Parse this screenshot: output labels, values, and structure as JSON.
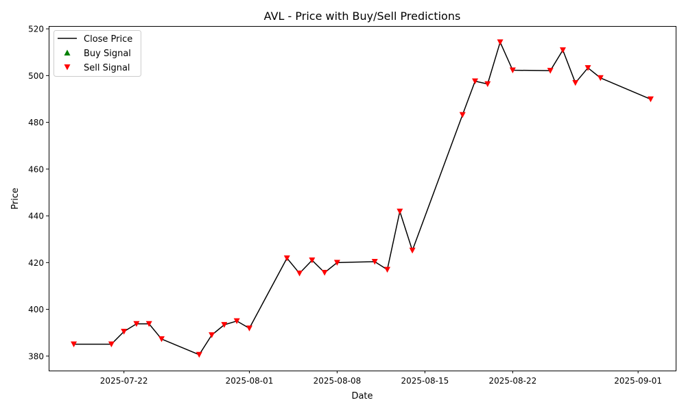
{
  "chart_data": {
    "type": "line",
    "title": "AVL - Price with Buy/Sell Predictions",
    "xlabel": "Date",
    "ylabel": "Price",
    "xlim": [
      "2025-07-16",
      "2025-09-04"
    ],
    "ylim": [
      373.8,
      521.2
    ],
    "xticks": [
      "2025-07-22",
      "2025-08-01",
      "2025-08-08",
      "2025-08-15",
      "2025-08-22",
      "2025-09-01"
    ],
    "yticks": [
      380,
      400,
      420,
      440,
      460,
      480,
      500,
      520
    ],
    "grid": false,
    "legend_position": "top-left",
    "series": [
      {
        "name": "Close Price",
        "kind": "line",
        "color": "#000000",
        "x": [
          "2025-07-18",
          "2025-07-21",
          "2025-07-22",
          "2025-07-23",
          "2025-07-24",
          "2025-07-25",
          "2025-07-28",
          "2025-07-29",
          "2025-07-30",
          "2025-07-31",
          "2025-08-01",
          "2025-08-04",
          "2025-08-05",
          "2025-08-06",
          "2025-08-07",
          "2025-08-08",
          "2025-08-11",
          "2025-08-12",
          "2025-08-13",
          "2025-08-14",
          "2025-08-18",
          "2025-08-19",
          "2025-08-20",
          "2025-08-21",
          "2025-08-22",
          "2025-08-25",
          "2025-08-26",
          "2025-08-27",
          "2025-08-28",
          "2025-08-29",
          "2025-09-02"
        ],
        "y": [
          385.1,
          385.1,
          390.5,
          393.8,
          393.8,
          387.3,
          380.6,
          389.0,
          393.4,
          395.0,
          391.9,
          421.9,
          415.4,
          421.0,
          415.7,
          420.0,
          420.4,
          417.0,
          441.9,
          425.2,
          483.2,
          497.6,
          496.4,
          514.3,
          502.3,
          502.1,
          510.9,
          496.9,
          503.3,
          499.0,
          489.9
        ]
      },
      {
        "name": "Buy Signal",
        "kind": "marker",
        "marker": "triangle-up",
        "color": "#008000",
        "x": [],
        "y": []
      },
      {
        "name": "Sell Signal",
        "kind": "marker",
        "marker": "triangle-down",
        "color": "#ff0000",
        "x": [
          "2025-07-18",
          "2025-07-21",
          "2025-07-22",
          "2025-07-23",
          "2025-07-24",
          "2025-07-25",
          "2025-07-28",
          "2025-07-29",
          "2025-07-30",
          "2025-07-31",
          "2025-08-01",
          "2025-08-04",
          "2025-08-05",
          "2025-08-06",
          "2025-08-07",
          "2025-08-08",
          "2025-08-11",
          "2025-08-12",
          "2025-08-13",
          "2025-08-14",
          "2025-08-18",
          "2025-08-19",
          "2025-08-20",
          "2025-08-21",
          "2025-08-22",
          "2025-08-25",
          "2025-08-26",
          "2025-08-27",
          "2025-08-28",
          "2025-08-29",
          "2025-09-02"
        ],
        "y": [
          385.1,
          385.1,
          390.5,
          393.8,
          393.8,
          387.3,
          380.6,
          389.0,
          393.4,
          395.0,
          391.9,
          421.9,
          415.4,
          421.0,
          415.7,
          420.0,
          420.4,
          417.0,
          441.9,
          425.2,
          483.2,
          497.6,
          496.4,
          514.3,
          502.3,
          502.1,
          510.9,
          496.9,
          503.3,
          499.0,
          489.9
        ]
      }
    ]
  }
}
